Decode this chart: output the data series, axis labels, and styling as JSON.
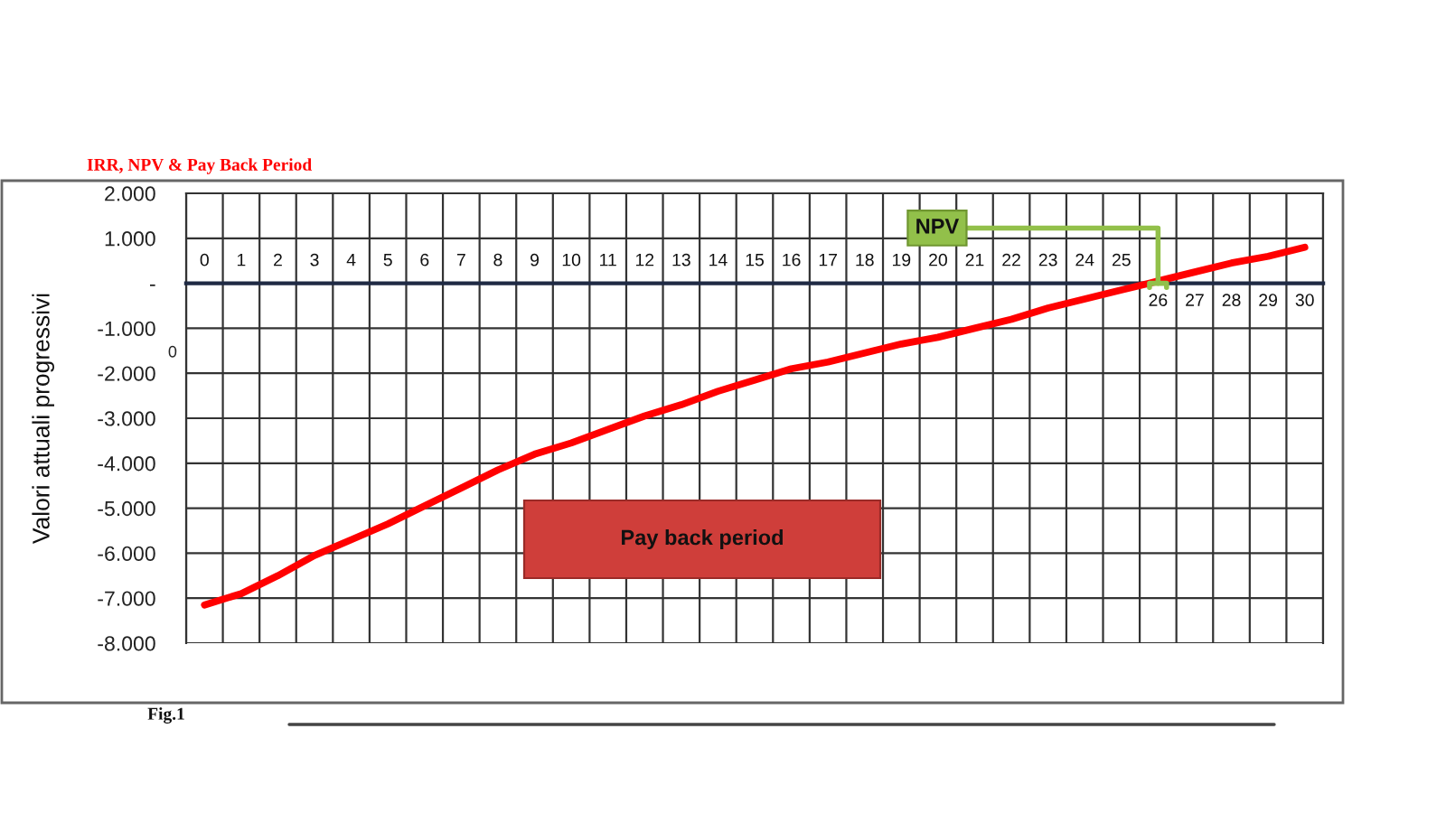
{
  "chart_data": {
    "type": "line",
    "title": "IRR, NPV & Pay Back Period",
    "ylabel": "Valori attuali progressivi",
    "categories": [
      "0",
      "1",
      "2",
      "3",
      "4",
      "5",
      "6",
      "7",
      "8",
      "9",
      "10",
      "11",
      "12",
      "13",
      "14",
      "15",
      "16",
      "17",
      "18",
      "19",
      "20",
      "21",
      "22",
      "23",
      "24",
      "25",
      "26",
      "27",
      "28",
      "29",
      "30"
    ],
    "series": [
      {
        "color": "#ff0000",
        "values": [
          -7150,
          -6900,
          -6500,
          -6050,
          -5700,
          -5350,
          -4950,
          -4550,
          -4150,
          -3800,
          -3550,
          -3250,
          -2950,
          -2700,
          -2400,
          -2150,
          -1900,
          -1750,
          -1550,
          -1350,
          -1200,
          -1000,
          -800,
          -550,
          -350,
          -150,
          50,
          250,
          450,
          600,
          800
        ]
      }
    ],
    "ylim": [
      -8000,
      2000
    ],
    "yticks": [
      {
        "value": 2000,
        "label": "2.000"
      },
      {
        "value": 1000,
        "label": "1.000"
      },
      {
        "value": 0,
        "label": "-"
      },
      {
        "value": -1000,
        "label": "-1.000"
      },
      {
        "value": -2000,
        "label": "-2.000"
      },
      {
        "value": -3000,
        "label": "-3.000"
      },
      {
        "value": -4000,
        "label": "-4.000"
      },
      {
        "value": -5000,
        "label": "-5.000"
      },
      {
        "value": -6000,
        "label": "-6.000"
      },
      {
        "value": -7000,
        "label": "-7.000"
      },
      {
        "value": -8000,
        "label": "-8.000"
      }
    ],
    "grid": true,
    "line_style": "solid",
    "annotations": [
      {
        "text": "NPV",
        "x": "26",
        "y": 0
      },
      "Pay back period",
      "0",
      "Fig.1"
    ]
  }
}
